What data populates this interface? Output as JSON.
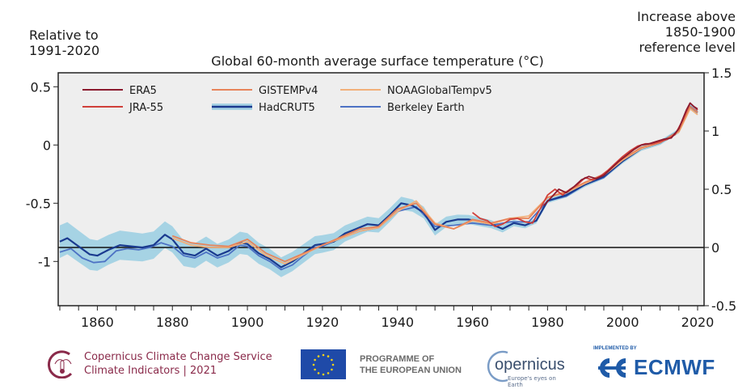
{
  "header": {
    "left_unit_line1": "Relative to",
    "left_unit_line2": "1991-2020",
    "right_unit_line1": "Increase above",
    "right_unit_line2": "1850-1900",
    "right_unit_line3": "reference level"
  },
  "chart_data": {
    "type": "line",
    "title": "Global 60-month average surface temperature (°C)",
    "xlabel": "",
    "ylabel_left": "Relative to 1991-2020",
    "ylabel_right": "Increase above 1850-1900 reference level",
    "xlim": [
      1850,
      2020
    ],
    "ylim_left": [
      -1.38,
      0.62
    ],
    "ylim_right": [
      -0.5,
      1.5
    ],
    "right_axis_offset": 0.88,
    "x_ticks": [
      1860,
      1880,
      1900,
      1920,
      1940,
      1960,
      1980,
      2000,
      2020
    ],
    "x_tick_labels": [
      "1860",
      "1880",
      "1900",
      "1920",
      "1940",
      "1960",
      "1980",
      "2000",
      "2020"
    ],
    "y_ticks_left": [
      0.5,
      0,
      -0.5,
      -1
    ],
    "y_tick_labels_left": [
      "0.5",
      "0",
      "-0.5",
      "-1"
    ],
    "y_ticks_right": [
      1.5,
      1,
      0.5,
      0,
      -0.5
    ],
    "y_tick_labels_right": [
      "1.5",
      "1",
      "0.5",
      "0",
      "-0.5"
    ],
    "reference_line_left": -0.88,
    "grid": false,
    "legend_position": "top-left",
    "plot_background": "#eeeeee",
    "series": [
      {
        "name": "ERA5",
        "color": "#8b1a2e",
        "x": [
          1979,
          1981,
          1983,
          1985,
          1987,
          1989,
          1991,
          1993,
          1995,
          1997,
          1999,
          2001,
          2003,
          2005,
          2007,
          2009,
          2011,
          2013,
          2015,
          2017,
          2018,
          2019,
          2020
        ],
        "y": [
          -0.52,
          -0.45,
          -0.38,
          -0.41,
          -0.36,
          -0.3,
          -0.27,
          -0.29,
          -0.26,
          -0.2,
          -0.14,
          -0.09,
          -0.04,
          0.0,
          0.01,
          0.03,
          0.05,
          0.06,
          0.14,
          0.3,
          0.36,
          0.33,
          0.31
        ]
      },
      {
        "name": "JRA-55",
        "color": "#d0403a",
        "x": [
          1960,
          1962,
          1964,
          1966,
          1968,
          1970,
          1972,
          1974,
          1976,
          1978,
          1980,
          1982,
          1984,
          1986,
          1988,
          1990,
          1992,
          1994,
          1996,
          1998,
          2000,
          2002,
          2004,
          2006,
          2008,
          2010,
          2012,
          2014,
          2016,
          2018,
          2020
        ],
        "y": [
          -0.58,
          -0.63,
          -0.65,
          -0.7,
          -0.68,
          -0.64,
          -0.63,
          -0.66,
          -0.67,
          -0.55,
          -0.43,
          -0.38,
          -0.43,
          -0.38,
          -0.34,
          -0.28,
          -0.3,
          -0.27,
          -0.22,
          -0.16,
          -0.1,
          -0.05,
          -0.01,
          0.01,
          0.01,
          0.03,
          0.05,
          0.09,
          0.21,
          0.36,
          0.3
        ]
      },
      {
        "name": "GISTEMPv4",
        "color": "#e8845a",
        "x": [
          1880,
          1885,
          1890,
          1895,
          1900,
          1905,
          1910,
          1915,
          1920,
          1925,
          1930,
          1935,
          1940,
          1945,
          1950,
          1955,
          1960,
          1965,
          1970,
          1975,
          1980,
          1985,
          1990,
          1995,
          2000,
          2005,
          2010,
          2015,
          2018,
          2020
        ],
        "y": [
          -0.78,
          -0.84,
          -0.86,
          -0.87,
          -0.81,
          -0.93,
          -1.0,
          -0.93,
          -0.86,
          -0.79,
          -0.72,
          -0.7,
          -0.55,
          -0.5,
          -0.68,
          -0.72,
          -0.64,
          -0.67,
          -0.63,
          -0.63,
          -0.45,
          -0.4,
          -0.32,
          -0.25,
          -0.12,
          -0.02,
          0.02,
          0.12,
          0.33,
          0.28
        ]
      },
      {
        "name": "NOAAGlobalTempv5",
        "color": "#f2b07a",
        "x": [
          1880,
          1885,
          1890,
          1895,
          1900,
          1905,
          1910,
          1915,
          1920,
          1925,
          1930,
          1935,
          1940,
          1945,
          1950,
          1955,
          1960,
          1965,
          1970,
          1975,
          1980,
          1985,
          1990,
          1995,
          2000,
          2005,
          2010,
          2015,
          2018,
          2020
        ],
        "y": [
          -0.8,
          -0.86,
          -0.88,
          -0.88,
          -0.83,
          -0.95,
          -1.02,
          -0.94,
          -0.86,
          -0.8,
          -0.74,
          -0.71,
          -0.57,
          -0.48,
          -0.67,
          -0.72,
          -0.65,
          -0.68,
          -0.63,
          -0.61,
          -0.45,
          -0.41,
          -0.33,
          -0.26,
          -0.13,
          -0.03,
          0.02,
          0.11,
          0.31,
          0.26
        ]
      },
      {
        "name": "HadCRUT5",
        "color": "#1a3a8f",
        "band_color": "#a6d3e4",
        "x": [
          1850,
          1852,
          1855,
          1858,
          1860,
          1863,
          1866,
          1869,
          1872,
          1875,
          1878,
          1880,
          1883,
          1886,
          1889,
          1892,
          1895,
          1898,
          1900,
          1903,
          1906,
          1909,
          1912,
          1915,
          1918,
          1920,
          1923,
          1926,
          1929,
          1932,
          1935,
          1938,
          1941,
          1944,
          1947,
          1950,
          1953,
          1956,
          1959,
          1962,
          1965,
          1968,
          1971,
          1974,
          1977,
          1980,
          1985,
          1990,
          1995,
          2000,
          2005,
          2010,
          2015,
          2018,
          2020
        ],
        "y": [
          -0.83,
          -0.8,
          -0.87,
          -0.94,
          -0.95,
          -0.9,
          -0.86,
          -0.87,
          -0.88,
          -0.86,
          -0.77,
          -0.81,
          -0.93,
          -0.95,
          -0.89,
          -0.95,
          -0.91,
          -0.84,
          -0.85,
          -0.93,
          -0.98,
          -1.05,
          -1.0,
          -0.93,
          -0.86,
          -0.85,
          -0.83,
          -0.76,
          -0.72,
          -0.68,
          -0.69,
          -0.6,
          -0.5,
          -0.52,
          -0.58,
          -0.73,
          -0.66,
          -0.64,
          -0.64,
          -0.66,
          -0.68,
          -0.72,
          -0.67,
          -0.69,
          -0.65,
          -0.48,
          -0.43,
          -0.34,
          -0.27,
          -0.14,
          -0.03,
          0.02,
          0.12,
          0.33,
          0.28
        ],
        "band_half_width_early": 0.14,
        "band_half_width_late": 0.02
      },
      {
        "name": "Berkeley Earth",
        "color": "#4d72c4",
        "x": [
          1850,
          1853,
          1856,
          1859,
          1862,
          1865,
          1868,
          1871,
          1874,
          1877,
          1880,
          1883,
          1886,
          1889,
          1892,
          1895,
          1898,
          1900,
          1903,
          1906,
          1909,
          1912,
          1915,
          1918,
          1920,
          1925,
          1930,
          1935,
          1940,
          1945,
          1950,
          1955,
          1960,
          1965,
          1970,
          1975,
          1980,
          1985,
          1990,
          1995,
          2000,
          2005,
          2010,
          2015,
          2018,
          2020
        ],
        "y": [
          -0.92,
          -0.89,
          -0.97,
          -1.01,
          -1.0,
          -0.91,
          -0.89,
          -0.9,
          -0.88,
          -0.84,
          -0.87,
          -0.95,
          -0.97,
          -0.92,
          -0.97,
          -0.94,
          -0.86,
          -0.87,
          -0.95,
          -1.0,
          -1.07,
          -1.03,
          -0.95,
          -0.88,
          -0.87,
          -0.8,
          -0.74,
          -0.71,
          -0.57,
          -0.53,
          -0.7,
          -0.69,
          -0.67,
          -0.69,
          -0.66,
          -0.66,
          -0.48,
          -0.44,
          -0.34,
          -0.28,
          -0.14,
          -0.03,
          0.02,
          0.12,
          0.33,
          0.28
        ]
      }
    ]
  },
  "footer": {
    "c3s_line1": "Copernicus Climate Change Service",
    "c3s_line2": "Climate Indicators | 2021",
    "eu_line1": "PROGRAMME OF",
    "eu_line2": "THE EUROPEAN UNION",
    "copernicus_word": "opernicus",
    "copernicus_tagline": "Europe's eyes on Earth",
    "ecmwf_impl": "IMPLEMENTED BY",
    "ecmwf_word": "ECMWF"
  }
}
